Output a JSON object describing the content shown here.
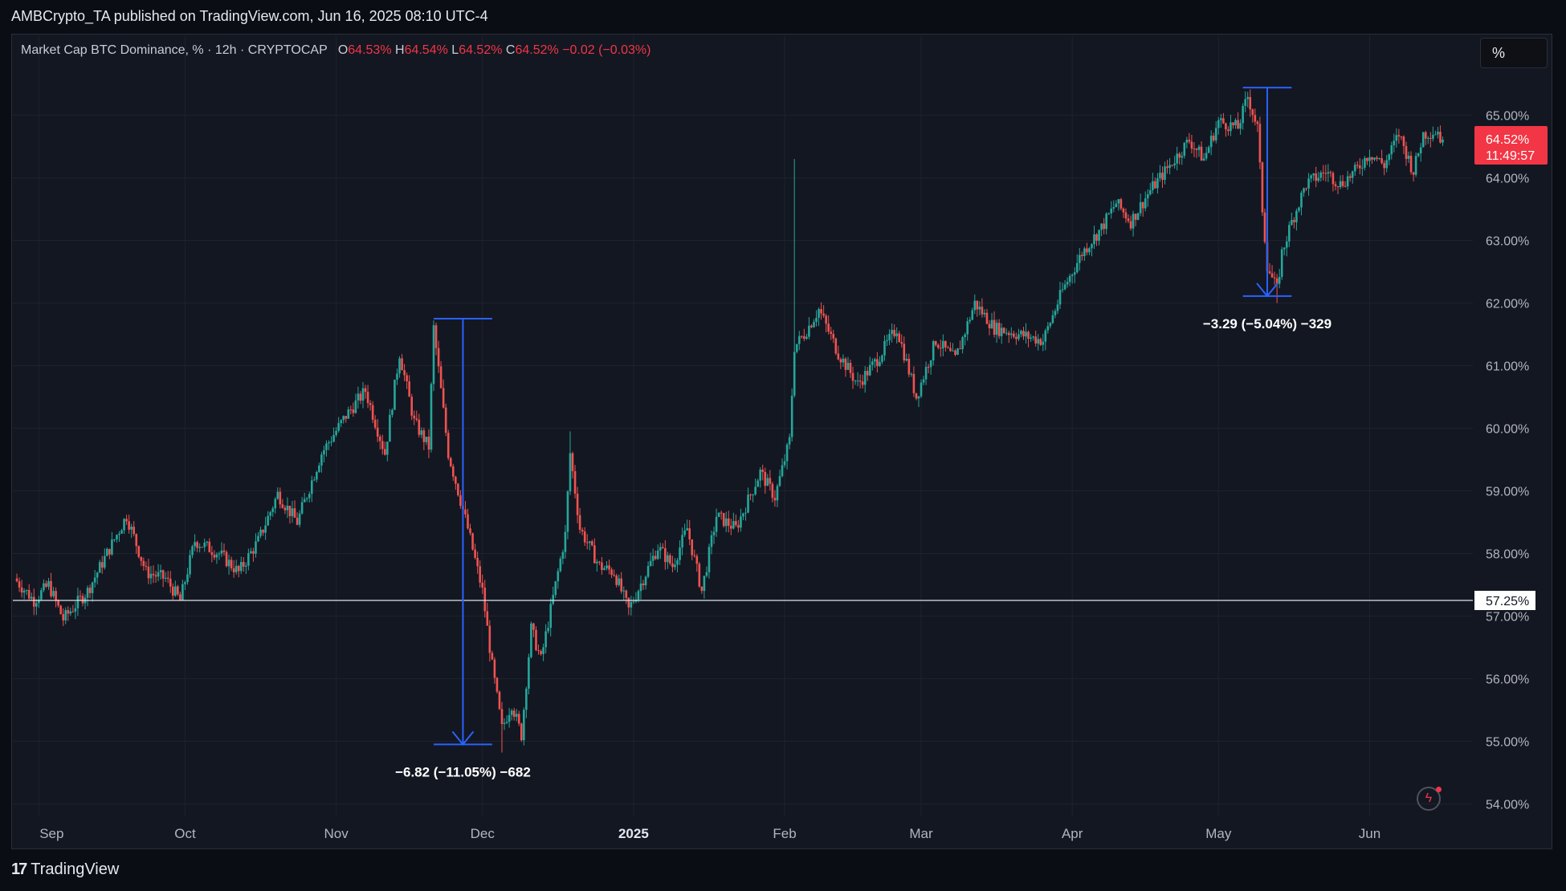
{
  "publisher": "AMBCrypto_TA published on TradingView.com, Jun 16, 2025 08:10 UTC-4",
  "legend": {
    "symbol": "Market Cap BTC Dominance, % · 12h · CRYPTOCAP",
    "o_label": "O",
    "o_value": "64.53%",
    "h_label": "H",
    "h_value": "64.54%",
    "l_label": "L",
    "l_value": "64.52%",
    "c_label": "C",
    "c_value": "64.52%",
    "change": "−0.02 (−0.03%)"
  },
  "toolbar": {
    "scale_button": "%"
  },
  "brand": {
    "name": "TradingView"
  },
  "colors": {
    "up": "#26a69a",
    "down": "#ef5350",
    "measure": "#2962ff",
    "background": "#131722",
    "grid": "#1e222d",
    "last_price": "#f23645"
  },
  "chart_data": {
    "type": "candlestick",
    "x_labels": [
      "Sep",
      "Oct",
      "Nov",
      "Dec",
      "2025",
      "Feb",
      "Mar",
      "Apr",
      "May",
      "Jun"
    ],
    "x_labels_bold": [
      "2025"
    ],
    "y_ticks": [
      "65.00%",
      "64.00%",
      "63.00%",
      "62.00%",
      "61.00%",
      "60.00%",
      "59.00%",
      "58.00%",
      "57.00%",
      "56.00%",
      "55.00%",
      "54.00%"
    ],
    "y_tick_values": [
      65,
      64,
      63,
      62,
      61,
      60,
      59,
      58,
      57,
      56,
      55,
      54
    ],
    "ylim": [
      53.9,
      65.65
    ],
    "date_range": [
      "2024-08-27",
      "2025-06-16"
    ],
    "x_label_dates": [
      "2024-09-01",
      "2024-10-01",
      "2024-11-01",
      "2024-12-01",
      "2025-01-01",
      "2025-02-01",
      "2025-03-01",
      "2025-04-01",
      "2025-05-01",
      "2025-06-01"
    ],
    "candle_interval": "12h",
    "series_keypoints": [
      [
        "2024-08-27",
        57.6
      ],
      [
        "2024-08-31",
        57.25
      ],
      [
        "2024-09-03",
        57.5
      ],
      [
        "2024-09-06",
        56.95
      ],
      [
        "2024-09-11",
        57.4
      ],
      [
        "2024-09-15",
        58.0
      ],
      [
        "2024-09-19",
        58.6
      ],
      [
        "2024-09-23",
        57.7
      ],
      [
        "2024-09-27",
        57.6
      ],
      [
        "2024-09-30",
        57.25
      ],
      [
        "2024-10-03",
        58.2
      ],
      [
        "2024-10-08",
        58.0
      ],
      [
        "2024-10-12",
        57.7
      ],
      [
        "2024-10-16",
        58.2
      ],
      [
        "2024-10-20",
        58.95
      ],
      [
        "2024-10-24",
        58.5
      ],
      [
        "2024-10-29",
        59.6
      ],
      [
        "2024-11-03",
        60.2
      ],
      [
        "2024-11-07",
        60.6
      ],
      [
        "2024-11-11",
        59.6
      ],
      [
        "2024-11-14",
        61.2
      ],
      [
        "2024-11-17",
        60.1
      ],
      [
        "2024-11-20",
        59.7
      ],
      [
        "2024-11-21",
        61.6
      ],
      [
        "2024-11-24",
        59.6
      ],
      [
        "2024-11-28",
        58.4
      ],
      [
        "2024-12-01",
        57.4
      ],
      [
        "2024-12-03",
        56.2
      ],
      [
        "2024-12-05",
        55.2
      ],
      [
        "2024-12-07",
        55.6
      ],
      [
        "2024-12-09",
        55.1
      ],
      [
        "2024-12-11",
        56.8
      ],
      [
        "2024-12-13",
        56.3
      ],
      [
        "2024-12-15",
        57.1
      ],
      [
        "2024-12-18",
        58.3
      ],
      [
        "2024-12-19",
        59.6
      ],
      [
        "2024-12-21",
        58.4
      ],
      [
        "2024-12-25",
        57.8
      ],
      [
        "2024-12-28",
        57.7
      ],
      [
        "2024-12-31",
        57.1
      ],
      [
        "2025-01-03",
        57.6
      ],
      [
        "2025-01-06",
        58.1
      ],
      [
        "2025-01-09",
        57.8
      ],
      [
        "2025-01-12",
        58.4
      ],
      [
        "2025-01-15",
        57.4
      ],
      [
        "2025-01-18",
        58.6
      ],
      [
        "2025-01-22",
        58.4
      ],
      [
        "2025-01-27",
        59.3
      ],
      [
        "2025-01-30",
        58.9
      ],
      [
        "2025-02-02",
        59.8
      ],
      [
        "2025-02-03",
        61.3
      ],
      [
        "2025-02-05",
        61.5
      ],
      [
        "2025-02-08",
        61.9
      ],
      [
        "2025-02-12",
        61.2
      ],
      [
        "2025-02-16",
        60.7
      ],
      [
        "2025-02-20",
        61.1
      ],
      [
        "2025-02-24",
        61.6
      ],
      [
        "2025-02-28",
        60.5
      ],
      [
        "2025-03-04",
        61.4
      ],
      [
        "2025-03-08",
        61.1
      ],
      [
        "2025-03-12",
        62.0
      ],
      [
        "2025-03-16",
        61.6
      ],
      [
        "2025-03-21",
        61.5
      ],
      [
        "2025-03-26",
        61.4
      ],
      [
        "2025-03-30",
        62.2
      ],
      [
        "2025-04-03",
        62.8
      ],
      [
        "2025-04-07",
        63.2
      ],
      [
        "2025-04-10",
        63.6
      ],
      [
        "2025-04-13",
        63.3
      ],
      [
        "2025-04-17",
        63.8
      ],
      [
        "2025-04-21",
        64.2
      ],
      [
        "2025-04-25",
        64.6
      ],
      [
        "2025-04-28",
        64.3
      ],
      [
        "2025-05-01",
        64.9
      ],
      [
        "2025-05-05",
        64.8
      ],
      [
        "2025-05-07",
        65.3
      ],
      [
        "2025-05-09",
        64.8
      ],
      [
        "2025-05-10",
        63.5
      ],
      [
        "2025-05-11",
        62.6
      ],
      [
        "2025-05-13",
        62.2
      ],
      [
        "2025-05-14",
        62.8
      ],
      [
        "2025-05-16",
        63.3
      ],
      [
        "2025-05-19",
        63.9
      ],
      [
        "2025-05-23",
        64.1
      ],
      [
        "2025-05-26",
        63.9
      ],
      [
        "2025-05-29",
        64.1
      ],
      [
        "2025-06-01",
        64.4
      ],
      [
        "2025-06-04",
        64.2
      ],
      [
        "2025-06-07",
        64.7
      ],
      [
        "2025-06-10",
        64.1
      ],
      [
        "2025-06-12",
        64.7
      ],
      [
        "2025-06-15",
        64.75
      ],
      [
        "2025-06-16",
        64.52
      ]
    ],
    "spikes": [
      {
        "date": "2025-02-03",
        "high": 64.3
      },
      {
        "date": "2024-12-19",
        "high": 59.95
      },
      {
        "date": "2024-12-05",
        "low": 54.82
      },
      {
        "date": "2025-05-13",
        "low": 62.0
      }
    ],
    "horizontal_line": {
      "value": 57.25,
      "label": "57.25%"
    },
    "last_price": {
      "value": 64.52,
      "label": "64.52%",
      "countdown": "11:49:57"
    },
    "measurements": [
      {
        "start_date": "2024-11-21",
        "end_date": "2024-12-03",
        "high": 61.75,
        "low": 54.95,
        "label": "−6.82 (−11.05%) −682"
      },
      {
        "start_date": "2025-05-06",
        "end_date": "2025-05-16",
        "high": 65.44,
        "low": 62.11,
        "label": "−3.29 (−5.04%) −329"
      }
    ]
  }
}
